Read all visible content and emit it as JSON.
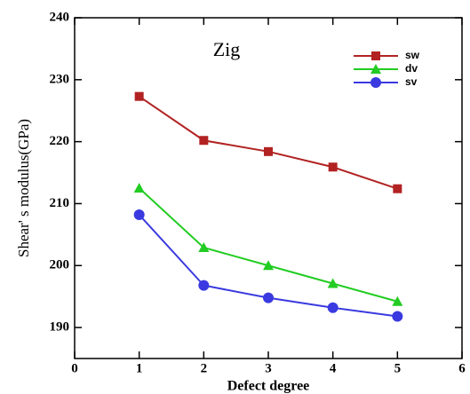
{
  "chart_data": {
    "type": "line",
    "title": "Zig",
    "x_label": "Defect degree",
    "y_label": "Shear' s modulus(GPa)",
    "x": [
      1,
      2,
      3,
      4,
      5
    ],
    "series": [
      {
        "name": "sw",
        "color": "#b22222",
        "marker": "square",
        "values": [
          227.3,
          220.2,
          218.4,
          215.9,
          212.4
        ]
      },
      {
        "name": "dv",
        "color": "#22cc22",
        "marker": "triangle",
        "values": [
          212.5,
          202.9,
          200.0,
          197.1,
          194.2
        ]
      },
      {
        "name": "sv",
        "color": "#3a3ae0",
        "marker": "circle",
        "values": [
          208.2,
          196.8,
          194.8,
          193.2,
          191.8
        ]
      }
    ],
    "xlim": [
      0,
      6
    ],
    "xticks": [
      0,
      1,
      2,
      3,
      4,
      5,
      6
    ],
    "ylim": [
      185,
      240
    ],
    "yticks": [
      190,
      200,
      210,
      220,
      230,
      240
    ],
    "legend": "upper right"
  }
}
